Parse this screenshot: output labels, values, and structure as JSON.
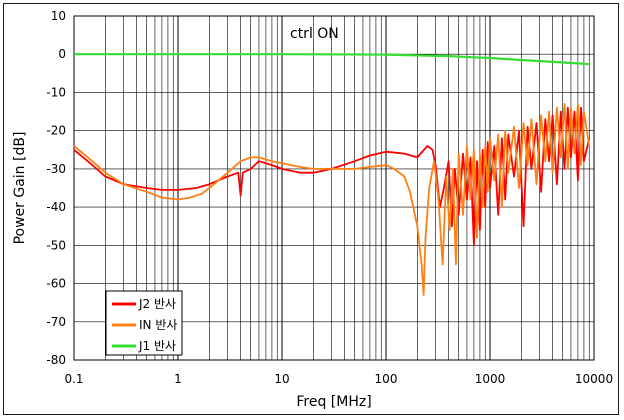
{
  "chart_data": {
    "type": "line",
    "xscale": "log",
    "xlim": [
      0.1,
      10000
    ],
    "ylim": [
      -80,
      10
    ],
    "xlabel": "Freq [MHz]",
    "ylabel": "Power Gain [dB]",
    "x_ticks": [
      "0.1",
      "1",
      "10",
      "100",
      "1000",
      "10000"
    ],
    "y_ticks": [
      "10",
      "0",
      "-10",
      "-20",
      "-30",
      "-40",
      "-50",
      "-60",
      "-70",
      "-80"
    ],
    "annotation": "ctrl ON",
    "grid": true,
    "legend_position": "bottom-left",
    "series": [
      {
        "name": "J2 반사",
        "color": "#ff0000",
        "x": [
          0.1,
          0.15,
          0.2,
          0.3,
          0.5,
          0.7,
          1,
          1.5,
          2,
          3,
          3.8,
          4,
          4.2,
          5,
          6,
          8,
          10,
          15,
          20,
          30,
          50,
          70,
          100,
          150,
          200,
          250,
          280,
          300,
          330,
          360,
          400,
          430,
          460,
          500,
          550,
          600,
          650,
          700,
          750,
          800,
          850,
          900,
          950,
          1000,
          1100,
          1200,
          1300,
          1400,
          1500,
          1700,
          1900,
          2100,
          2300,
          2500,
          2800,
          3100,
          3400,
          3700,
          4000,
          4400,
          4800,
          5200,
          5600,
          6000,
          6500,
          7000,
          7500,
          8000,
          9000
        ],
        "y": [
          -25,
          -29,
          -32,
          -34,
          -35,
          -35.5,
          -35.5,
          -35,
          -34,
          -32,
          -31,
          -37,
          -31,
          -30,
          -28,
          -29,
          -30,
          -31,
          -31,
          -30,
          -28,
          -26.5,
          -25.5,
          -26,
          -27,
          -24,
          -25,
          -29,
          -40,
          -35,
          -28,
          -45,
          -30,
          -42,
          -26,
          -38,
          -27,
          -50,
          -28,
          -46,
          -25,
          -40,
          -23,
          -35,
          -24,
          -42,
          -22,
          -38,
          -21,
          -32,
          -20,
          -45,
          -19,
          -30,
          -18,
          -36,
          -17,
          -28,
          -16,
          -34,
          -15,
          -30,
          -14,
          -27,
          -15,
          -33,
          -14,
          -28,
          -22
        ]
      },
      {
        "name": "IN 반사",
        "color": "#ff7f10",
        "x": [
          0.1,
          0.15,
          0.2,
          0.3,
          0.5,
          0.7,
          1,
          1.3,
          1.7,
          2,
          3,
          4,
          5,
          6,
          8,
          10,
          15,
          20,
          30,
          50,
          70,
          100,
          120,
          150,
          170,
          200,
          220,
          230,
          240,
          260,
          290,
          320,
          350,
          380,
          410,
          440,
          470,
          500,
          550,
          600,
          650,
          700,
          750,
          800,
          850,
          900,
          950,
          1000,
          1100,
          1200,
          1300,
          1400,
          1500,
          1700,
          1900,
          2100,
          2300,
          2500,
          2800,
          3100,
          3400,
          3700,
          4000,
          4400,
          4800,
          5200,
          5600,
          6000,
          6500,
          7000,
          7500,
          8000,
          9000
        ],
        "y": [
          -24,
          -28,
          -31,
          -34,
          -36,
          -37.5,
          -38,
          -37.5,
          -36.5,
          -35,
          -31,
          -28,
          -27,
          -27,
          -28,
          -28.5,
          -29.5,
          -30,
          -30,
          -30,
          -29.5,
          -29,
          -30,
          -32,
          -36,
          -45,
          -55,
          -63,
          -48,
          -35,
          -28,
          -38,
          -55,
          -32,
          -46,
          -30,
          -55,
          -26,
          -42,
          -24,
          -38,
          -25,
          -48,
          -26,
          -40,
          -24,
          -36,
          -22,
          -33,
          -21,
          -40,
          -20,
          -31,
          -19,
          -35,
          -18,
          -29,
          -17,
          -34,
          -16,
          -28,
          -15,
          -31,
          -14,
          -27,
          -13,
          -30,
          -14,
          -26,
          -13,
          -29,
          -15,
          -24
        ]
      },
      {
        "name": "J1 반사",
        "color": "#33dd33",
        "x": [
          0.1,
          1,
          10,
          100,
          200,
          400,
          700,
          1000,
          2000,
          4000,
          7000,
          9000
        ],
        "y": [
          0,
          0,
          0,
          -0.1,
          -0.3,
          -0.5,
          -0.8,
          -1,
          -1.5,
          -2,
          -2.4,
          -2.6
        ]
      }
    ]
  }
}
